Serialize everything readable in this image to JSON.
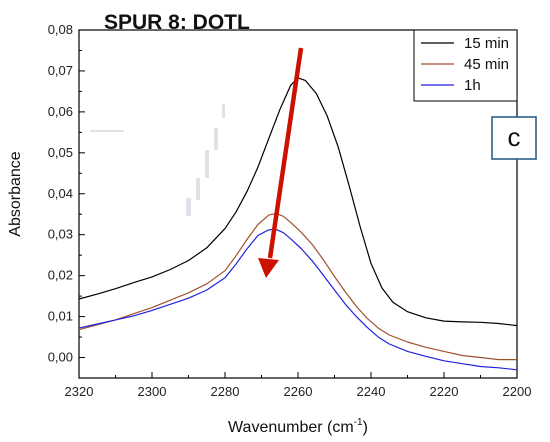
{
  "chart_data": {
    "type": "line",
    "title": "SPUR 8: DOTL",
    "xlabel": "Wavenumber (cm",
    "xlabel_sup": "-1",
    "xlabel_end": ")",
    "ylabel": "Absorbance",
    "xlim": [
      2320,
      2200
    ],
    "ylim": [
      -0.005,
      0.08
    ],
    "x_reversed": true,
    "x_ticks": [
      "2320",
      "2300",
      "2280",
      "2260",
      "2240",
      "2220",
      "2200"
    ],
    "y_ticks": [
      "0,00",
      "0,01",
      "0,02",
      "0,03",
      "0,04",
      "0,05",
      "0,06",
      "0,07",
      "0,08"
    ],
    "legend_position": "top-right",
    "panel_label": "c",
    "annotation": "arrow from 15 min peak down toward lower peaks",
    "series": [
      {
        "name": "15 min",
        "color": "#000000",
        "x": [
          2320,
          2315,
          2310,
          2305,
          2300,
          2295,
          2290,
          2285,
          2280,
          2277,
          2274,
          2271,
          2268,
          2265,
          2262,
          2260,
          2258,
          2255,
          2252,
          2249,
          2246,
          2243,
          2240,
          2237,
          2234,
          2230,
          2225,
          2220,
          2215,
          2210,
          2205,
          2200
        ],
        "y": [
          0.0143,
          0.0155,
          0.0168,
          0.0183,
          0.0197,
          0.0215,
          0.0237,
          0.0268,
          0.0315,
          0.0355,
          0.0405,
          0.0465,
          0.0535,
          0.0605,
          0.0665,
          0.0683,
          0.0677,
          0.0645,
          0.059,
          0.0515,
          0.042,
          0.032,
          0.023,
          0.017,
          0.0135,
          0.0112,
          0.0097,
          0.0089,
          0.0087,
          0.0086,
          0.0083,
          0.0078
        ]
      },
      {
        "name": "45 min",
        "color": "#A0522D",
        "x": [
          2320,
          2315,
          2310,
          2305,
          2300,
          2295,
          2290,
          2285,
          2280,
          2277,
          2274,
          2271,
          2268,
          2266,
          2264,
          2262,
          2259,
          2256,
          2253,
          2250,
          2247,
          2244,
          2241,
          2238,
          2235,
          2230,
          2225,
          2220,
          2215,
          2210,
          2205,
          2200
        ],
        "y": [
          0.0068,
          0.008,
          0.0092,
          0.0107,
          0.0122,
          0.014,
          0.0158,
          0.018,
          0.0212,
          0.0248,
          0.0288,
          0.0325,
          0.0348,
          0.0352,
          0.0345,
          0.033,
          0.0305,
          0.0275,
          0.0238,
          0.0198,
          0.016,
          0.0125,
          0.0095,
          0.0072,
          0.0055,
          0.0038,
          0.0025,
          0.0015,
          0.0005,
          0.0,
          -0.0005,
          -0.0005
        ]
      },
      {
        "name": "1h",
        "color": "#2222DD",
        "x": [
          2320,
          2315,
          2310,
          2305,
          2300,
          2295,
          2290,
          2285,
          2280,
          2277,
          2274,
          2271,
          2268,
          2266,
          2264,
          2262,
          2259,
          2256,
          2253,
          2250,
          2247,
          2244,
          2241,
          2238,
          2235,
          2230,
          2225,
          2220,
          2215,
          2210,
          2205,
          2200
        ],
        "y": [
          0.0072,
          0.0082,
          0.0092,
          0.0102,
          0.0115,
          0.013,
          0.0145,
          0.0165,
          0.0195,
          0.0228,
          0.0265,
          0.0298,
          0.0312,
          0.0313,
          0.0305,
          0.029,
          0.0265,
          0.0235,
          0.02,
          0.0165,
          0.013,
          0.01,
          0.0073,
          0.005,
          0.0033,
          0.0015,
          0.0003,
          -0.0008,
          -0.0015,
          -0.0022,
          -0.0025,
          -0.003
        ]
      }
    ]
  },
  "colors": {
    "arrow": "#CC1100",
    "panel_box": "#2C5F8A"
  }
}
